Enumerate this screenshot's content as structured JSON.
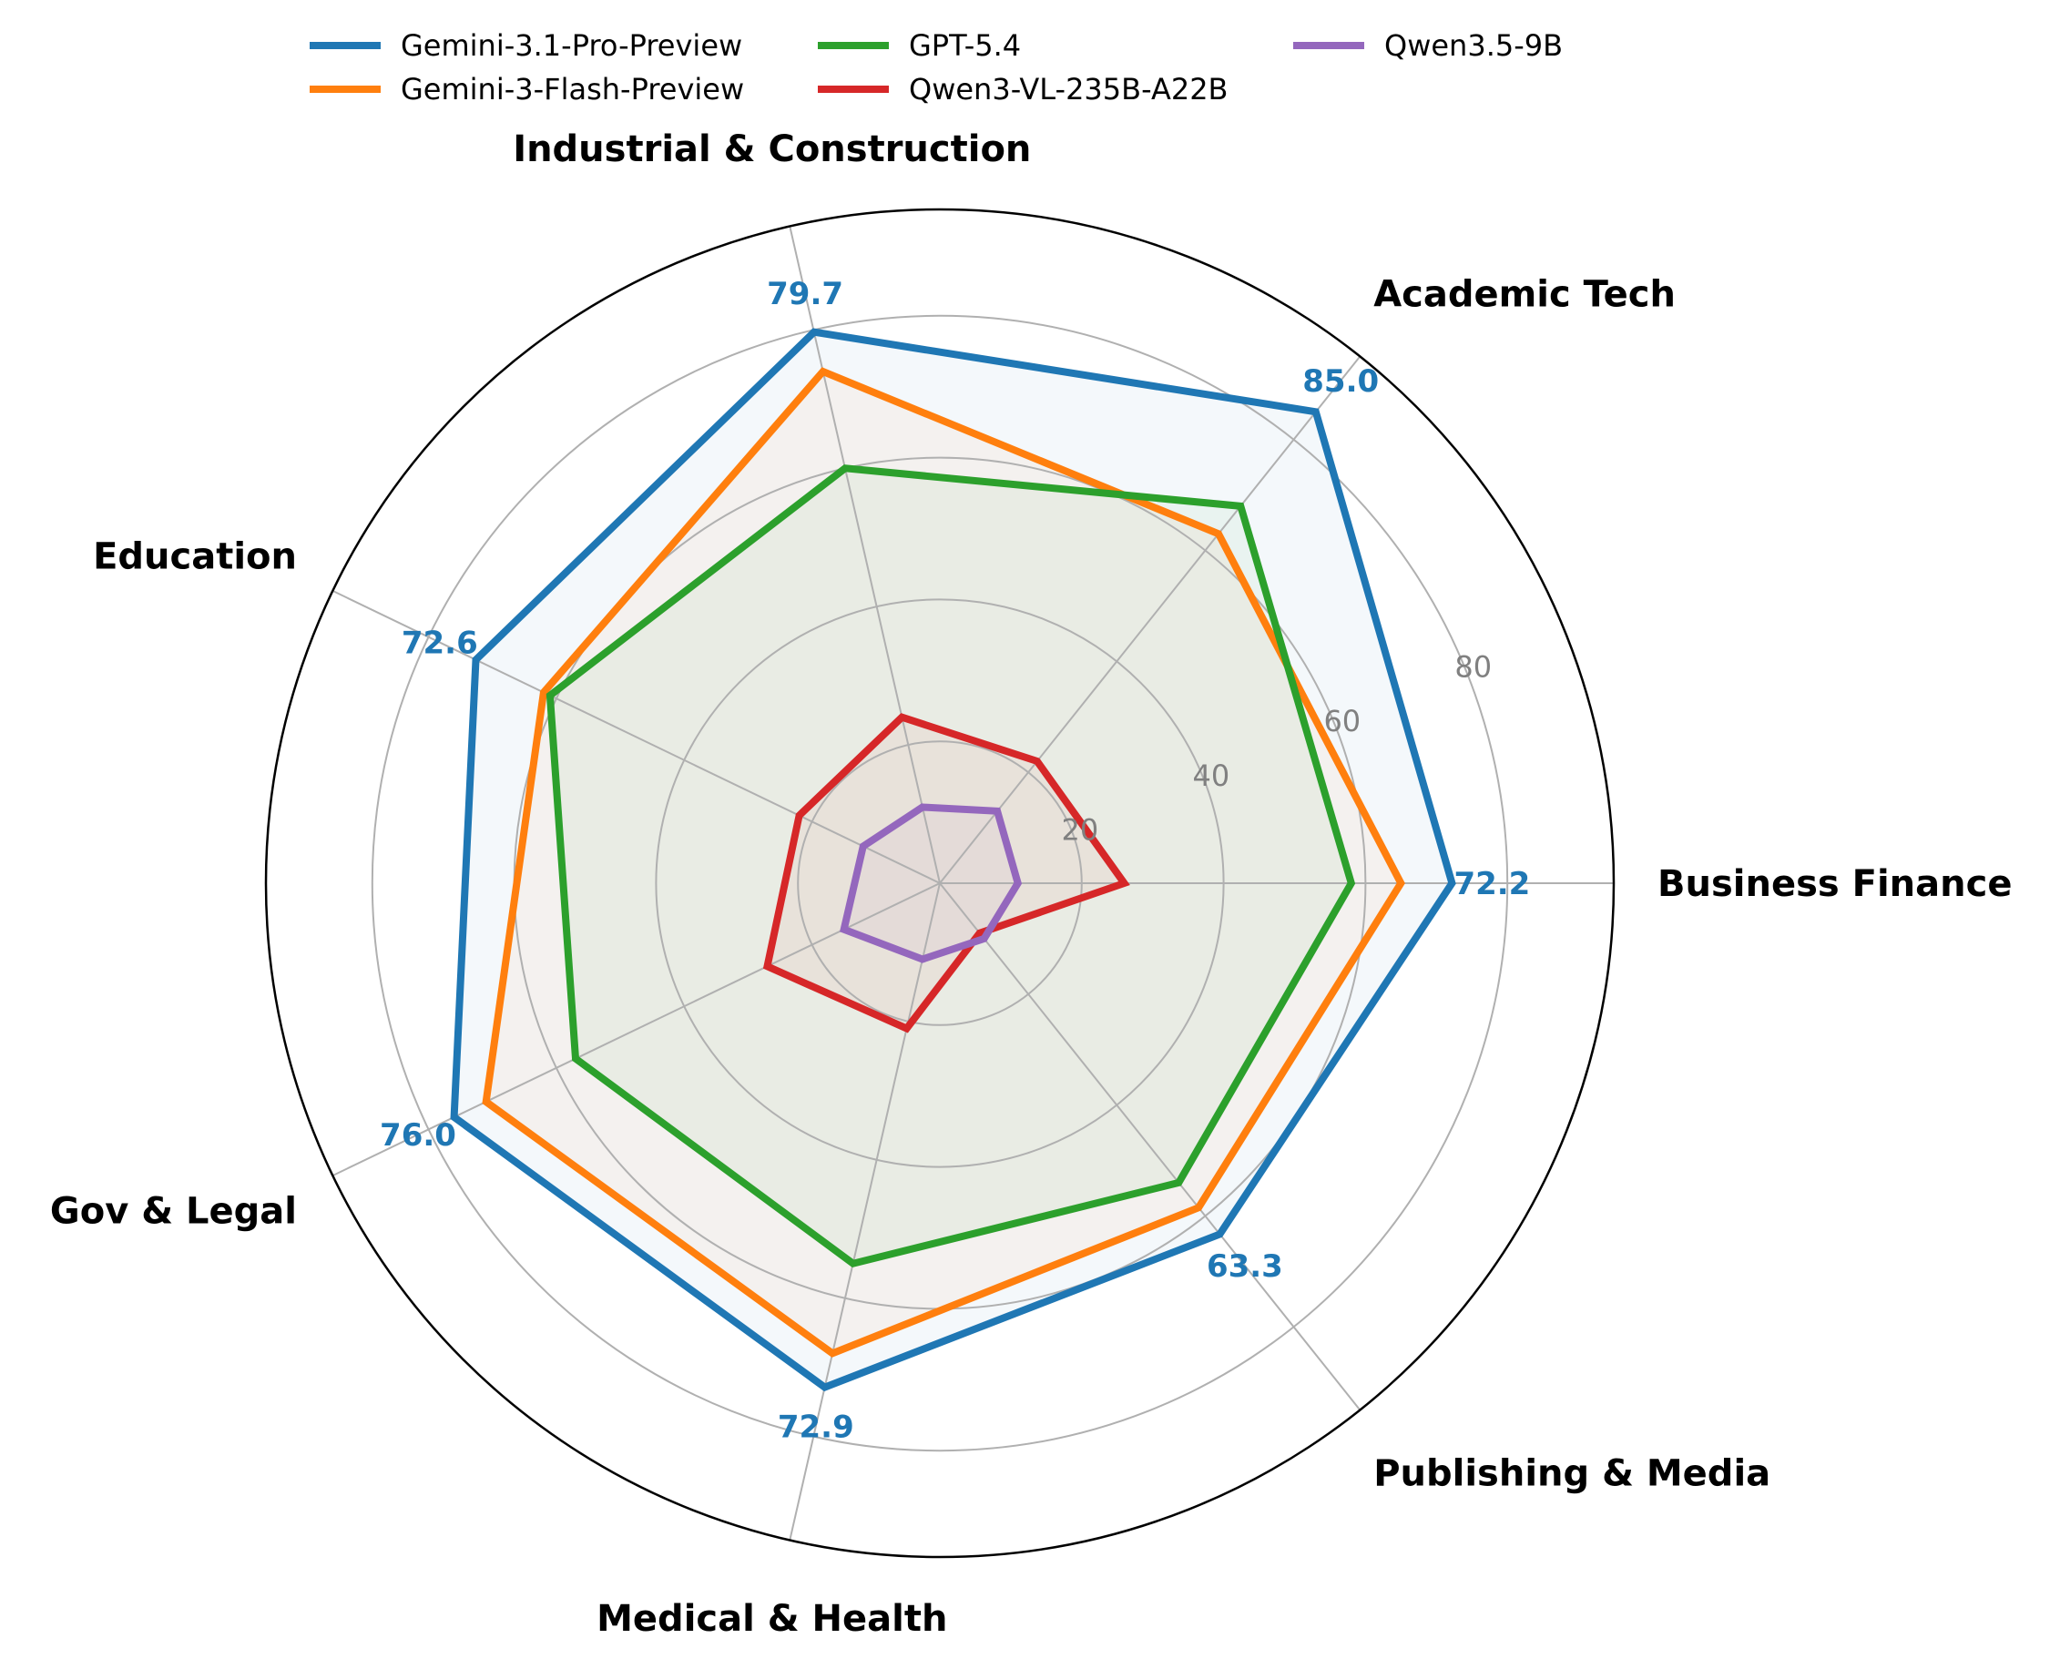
{
  "chart_data": {
    "type": "radar",
    "categories": [
      "Business Finance",
      "Academic Tech",
      "Industrial & Construction",
      "Education",
      "Gov & Legal",
      "Medical & Health",
      "Publishing & Media"
    ],
    "rlim": [
      0,
      95
    ],
    "rticks": [
      20,
      40,
      60,
      80
    ],
    "rtick_labels": [
      "20",
      "40",
      "60",
      "80"
    ],
    "grid": true,
    "legend_position": "top",
    "series": [
      {
        "name": "Gemini-3.1-Pro-Preview",
        "color": "#1f77b4",
        "values": [
          72.2,
          85.0,
          79.7,
          72.6,
          76.0,
          72.9,
          63.3
        ]
      },
      {
        "name": "Gemini-3-Flash-Preview",
        "color": "#ff7f0e",
        "values": [
          65.0,
          63.0,
          74.0,
          62.0,
          71.0,
          68.0,
          58.5
        ]
      },
      {
        "name": "GPT-5.4",
        "color": "#2ca02c",
        "values": [
          58.0,
          68.0,
          60.0,
          61.0,
          57.0,
          55.0,
          54.0
        ]
      },
      {
        "name": "Qwen3-VL-235B-A22B",
        "color": "#d62728",
        "values": [
          26.0,
          22.0,
          24.0,
          22.0,
          27.0,
          21.0,
          9.0
        ]
      },
      {
        "name": "Qwen3.5-9B",
        "color": "#9467bd",
        "values": [
          11.0,
          13.0,
          11.0,
          12.0,
          15.0,
          11.0,
          10.0
        ]
      }
    ],
    "value_labels": {
      "series": "Gemini-3.1-Pro-Preview",
      "color": "#1f77b4",
      "texts": [
        "72.2",
        "85.0",
        "79.7",
        "72.6",
        "76.0",
        "72.9",
        "63.3"
      ]
    }
  }
}
